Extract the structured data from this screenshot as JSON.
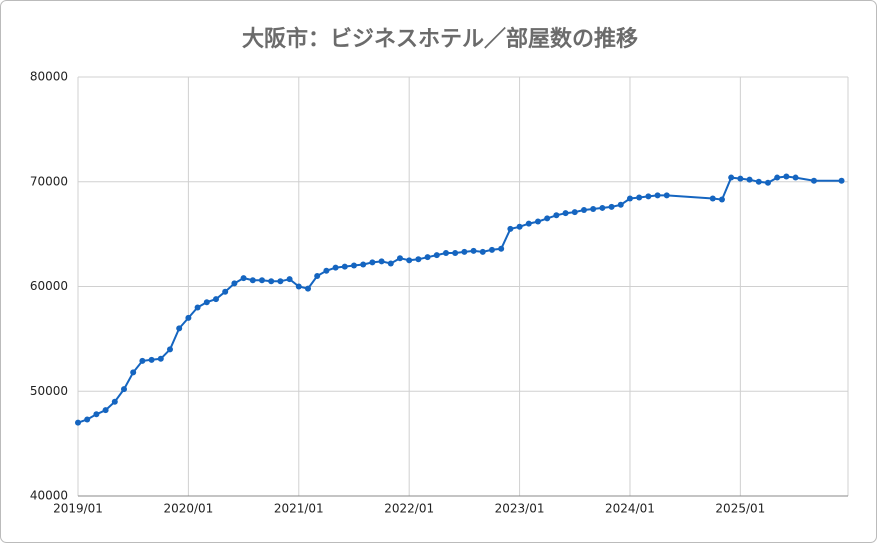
{
  "chart_data": {
    "type": "line",
    "title": "大阪市：ビジネスホテル／部屋数の推移",
    "x": [
      "2019/01",
      "2019/02",
      "2019/03",
      "2019/04",
      "2019/05",
      "2019/06",
      "2019/07",
      "2019/08",
      "2019/09",
      "2019/10",
      "2019/11",
      "2019/12",
      "2020/01",
      "2020/02",
      "2020/03",
      "2020/04",
      "2020/05",
      "2020/06",
      "2020/07",
      "2020/08",
      "2020/09",
      "2020/10",
      "2020/11",
      "2020/12",
      "2021/01",
      "2021/02",
      "2021/03",
      "2021/04",
      "2021/05",
      "2021/06",
      "2021/07",
      "2021/08",
      "2021/09",
      "2021/10",
      "2021/11",
      "2021/12",
      "2022/01",
      "2022/02",
      "2022/03",
      "2022/04",
      "2022/05",
      "2022/06",
      "2022/07",
      "2022/08",
      "2022/09",
      "2022/10",
      "2022/11",
      "2022/12",
      "2023/01",
      "2023/02",
      "2023/03",
      "2023/04",
      "2023/05",
      "2023/06",
      "2023/07",
      "2023/08",
      "2023/09",
      "2023/10",
      "2023/11",
      "2023/12",
      "2024/01",
      "2024/02",
      "2024/03",
      "2024/04",
      "2024/05",
      "2024/10",
      "2024/11",
      "2024/12",
      "2025/01",
      "2025/02",
      "2025/03",
      "2025/04",
      "2025/05",
      "2025/06",
      "2025/07",
      "2025/09",
      "2025/12"
    ],
    "series": [
      {
        "name": "部屋数",
        "color": "#1565c0",
        "values": [
          47000,
          47300,
          47800,
          48200,
          49000,
          50200,
          51800,
          52900,
          53000,
          53100,
          54000,
          56000,
          57000,
          58000,
          58500,
          58800,
          59500,
          60300,
          60800,
          60600,
          60600,
          60500,
          60500,
          60700,
          60000,
          59800,
          61000,
          61500,
          61800,
          61900,
          62000,
          62100,
          62300,
          62400,
          62200,
          62700,
          62500,
          62600,
          62800,
          63000,
          63200,
          63200,
          63300,
          63400,
          63300,
          63500,
          63600,
          65500,
          65700,
          66000,
          66200,
          66500,
          66800,
          67000,
          67100,
          67300,
          67400,
          67500,
          67600,
          67800,
          68400,
          68500,
          68600,
          68700,
          68700,
          68400,
          68300,
          70400,
          70300,
          70200,
          70000,
          69900,
          70400,
          70500,
          70400,
          70100,
          70100
        ]
      }
    ],
    "xlim": [
      "2019/01",
      "2025/12"
    ],
    "xticks": [
      "2019/01",
      "2020/01",
      "2021/01",
      "2022/01",
      "2023/01",
      "2024/01",
      "2025/01"
    ],
    "ylim": [
      40000,
      80000
    ],
    "yticks": [
      40000,
      50000,
      60000,
      70000,
      80000
    ],
    "grid": true
  }
}
